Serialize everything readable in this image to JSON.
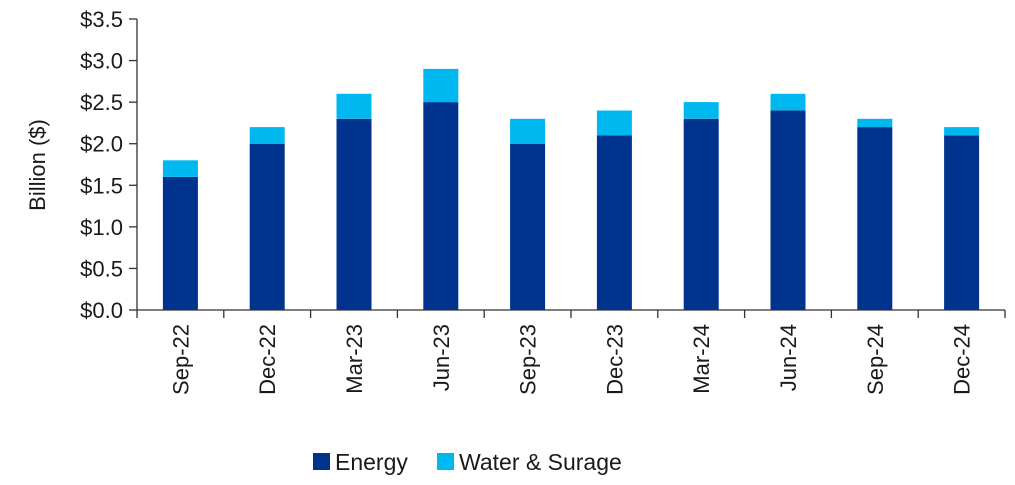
{
  "chart_data": {
    "type": "bar",
    "stacked": true,
    "title": "",
    "xlabel": "",
    "ylabel": "Billion ($)",
    "ylim": [
      0,
      3.5
    ],
    "y_ticks": [
      {
        "value": 0.0,
        "label": "$0.0"
      },
      {
        "value": 0.5,
        "label": "$0.5"
      },
      {
        "value": 1.0,
        "label": "$1.0"
      },
      {
        "value": 1.5,
        "label": "$1.5"
      },
      {
        "value": 2.0,
        "label": "$2.0"
      },
      {
        "value": 2.5,
        "label": "$2.5"
      },
      {
        "value": 3.0,
        "label": "$3.0"
      },
      {
        "value": 3.5,
        "label": "$3.5"
      }
    ],
    "grid": false,
    "legend_position": "bottom",
    "categories": [
      "Sep-22",
      "Dec-22",
      "Mar-23",
      "Jun-23",
      "Sep-23",
      "Dec-23",
      "Mar-24",
      "Jun-24",
      "Sep-24",
      "Dec-24"
    ],
    "series": [
      {
        "name": "Energy",
        "color": "#00338d",
        "values": [
          1.6,
          2.0,
          2.3,
          2.5,
          2.0,
          2.1,
          2.3,
          2.4,
          2.2,
          2.1
        ]
      },
      {
        "name": "Water & Surage",
        "color": "#00b8f0",
        "values": [
          0.2,
          0.2,
          0.3,
          0.4,
          0.3,
          0.3,
          0.2,
          0.2,
          0.1,
          0.1
        ]
      }
    ]
  }
}
